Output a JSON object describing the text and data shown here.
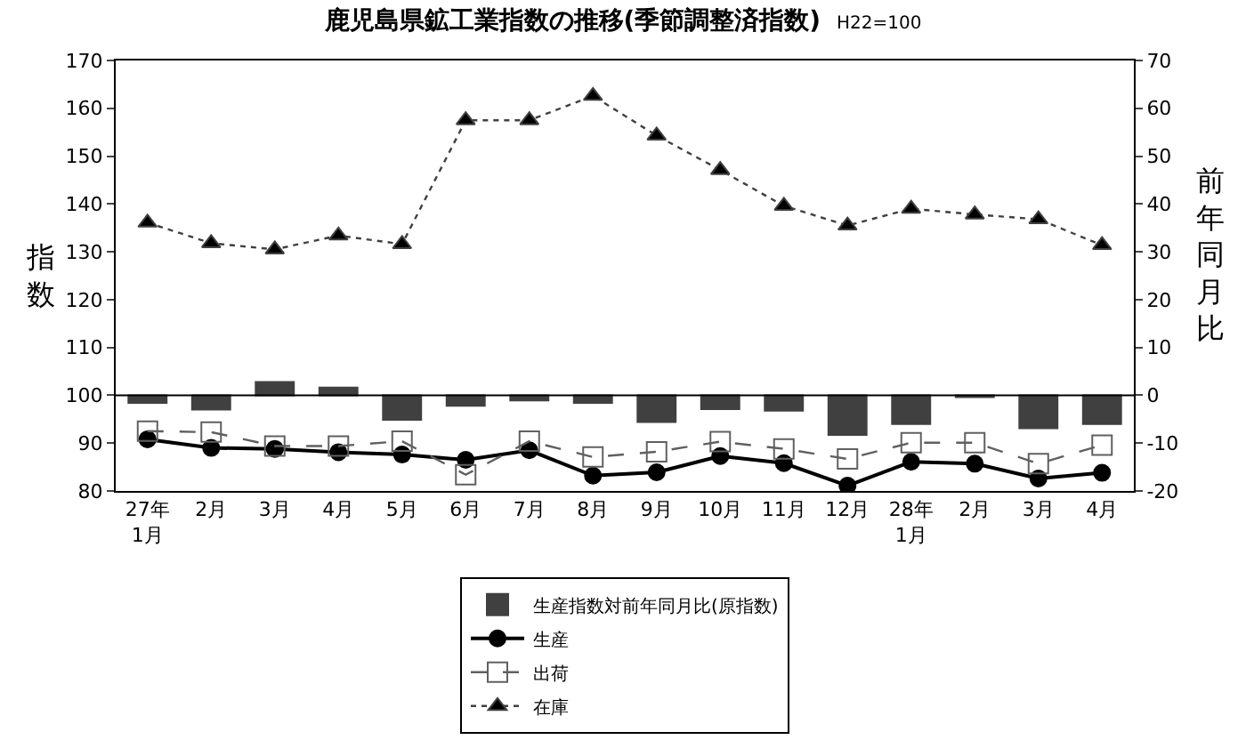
{
  "chart_data": {
    "type": "line",
    "title": "鹿児島県鉱工業指数の推移(季節調整済指数)",
    "subtitle": "H22=100",
    "ylabel": "指数",
    "y2label": "前年同月比",
    "categories": [
      "27年\n1月",
      "2月",
      "3月",
      "4月",
      "5月",
      "6月",
      "7月",
      "8月",
      "9月",
      "10月",
      "11月",
      "12月",
      "28年\n1月",
      "2月",
      "3月",
      "4月"
    ],
    "series": [
      {
        "name": "生産指数対前年同月比(原指数)",
        "type": "bar",
        "axis": "y2",
        "color": "#404040",
        "values": [
          -1.6,
          -3.0,
          2.8,
          1.6,
          -5.1,
          -2.2,
          -1.1,
          -1.6,
          -5.6,
          -2.9,
          -3.2,
          -8.3,
          -6.0,
          -0.4,
          -6.9,
          -6.0
        ]
      },
      {
        "name": "生産",
        "color": "#000000",
        "marker": "circle",
        "line_style": "solid",
        "values": [
          90.8,
          89.0,
          88.8,
          88.1,
          87.6,
          86.5,
          88.5,
          83.2,
          83.9,
          87.3,
          85.8,
          81.1,
          86.1,
          85.7,
          82.6,
          83.8
        ]
      },
      {
        "name": "出荷",
        "color": "#606060",
        "marker": "square",
        "line_style": "dashed",
        "values": [
          92.5,
          92.3,
          89.4,
          89.4,
          90.4,
          83.4,
          90.4,
          87.1,
          88.2,
          90.3,
          88.8,
          86.7,
          90.1,
          90.1,
          85.7,
          89.6
        ]
      },
      {
        "name": "在庫",
        "color": "#404040",
        "marker": "triangle",
        "line_style": "dotted",
        "values": [
          136.1,
          131.8,
          130.5,
          133.4,
          131.6,
          157.5,
          157.5,
          162.6,
          154.3,
          147.1,
          139.6,
          135.5,
          139.0,
          137.8,
          136.8,
          131.4
        ]
      }
    ],
    "ylim": [
      80,
      170
    ],
    "yticks": [
      80,
      90,
      100,
      110,
      120,
      130,
      140,
      150,
      160,
      170
    ],
    "y2lim": [
      -20,
      70
    ],
    "y2ticks": [
      -20,
      -10,
      0,
      10,
      20,
      30,
      40,
      50,
      60,
      70
    ],
    "ref_lines": [
      {
        "axis": "y2",
        "value": 0,
        "color": "#000000"
      }
    ],
    "grid": false,
    "legend": "bottom"
  }
}
